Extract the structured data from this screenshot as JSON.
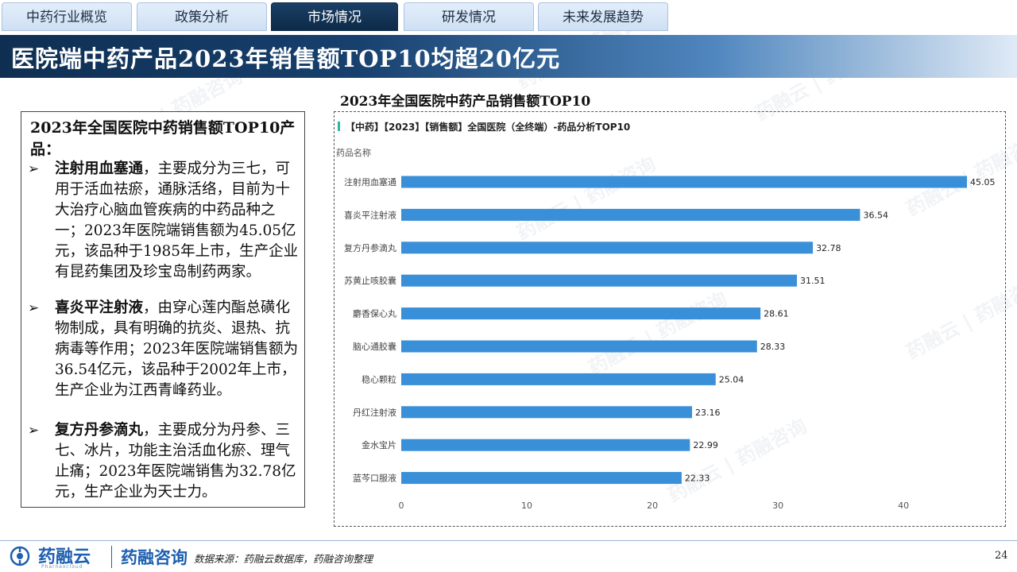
{
  "tabs": [
    {
      "label": "中药行业概览",
      "active": false
    },
    {
      "label": "政策分析",
      "active": false
    },
    {
      "label": "市场情况",
      "active": true
    },
    {
      "label": "研发情况",
      "active": false
    },
    {
      "label": "未来发展趋势",
      "active": false
    }
  ],
  "page_title": "医院端中药产品2023年销售额TOP10均超20亿元",
  "left_box": {
    "title": "2023年全国医院中药销售额TOP10产品：",
    "bullets": [
      {
        "name": "注射用血塞通",
        "text": "，主要成分为三七，可用于活血祛瘀，通脉活络，目前为十大治疗心脑血管疾病的中药品种之一；2023年医院端销售额为45.05亿元，该品种于1985年上市，生产企业有昆药集团及珍宝岛制药两家。"
      },
      {
        "name": "喜炎平注射液",
        "text": "，由穿心莲内酯总磺化物制成，具有明确的抗炎、退热、抗病毒等作用；2023年医院端销售额为36.54亿元，该品种于2002年上市，生产企业为江西青峰药业。"
      },
      {
        "name": "复方丹参滴丸",
        "text": "，主要成分为丹参、三七、冰片，功能主治活血化瘀、理气止痛；2023年医院端销售为32.78亿元，生产企业为天士力。"
      }
    ]
  },
  "chart_caption": "2023年全国医院中药产品销售额TOP10",
  "chart_data": {
    "type": "bar",
    "orientation": "horizontal",
    "title": "【中药】【2023】【销售额】全国医院（全终端）-药品分析TOP10",
    "ylabel": "药品名称",
    "xlabel": "",
    "categories": [
      "注射用血塞通",
      "喜炎平注射液",
      "复方丹参滴丸",
      "苏黄止咳胶囊",
      "麝香保心丸",
      "脑心通胶囊",
      "稳心颗粒",
      "丹红注射液",
      "金水宝片",
      "蓝芩口服液"
    ],
    "values": [
      45.05,
      36.54,
      32.78,
      31.51,
      28.61,
      28.33,
      25.04,
      23.16,
      22.99,
      22.33
    ],
    "xticks": [
      0,
      10,
      20,
      30,
      40
    ],
    "xlim": [
      0,
      45.05
    ],
    "grid": false,
    "bar_color": "#3a8fd9",
    "accent_color": "#2bb5a8"
  },
  "footer": {
    "logo_name": "药融云",
    "logo_sub": "Pharnexcloud",
    "logo_name2": "药融咨询",
    "source": "数据来源：药融云数据库，药融咨询整理",
    "page_number": "24"
  },
  "watermark": "药融云 | 药融咨询",
  "colors": {
    "title_band_dark": "#0f2f52",
    "tab_active": "#1b3f66",
    "tab_inactive": "#d6e5f6",
    "brand_blue": "#1d5fb0"
  }
}
